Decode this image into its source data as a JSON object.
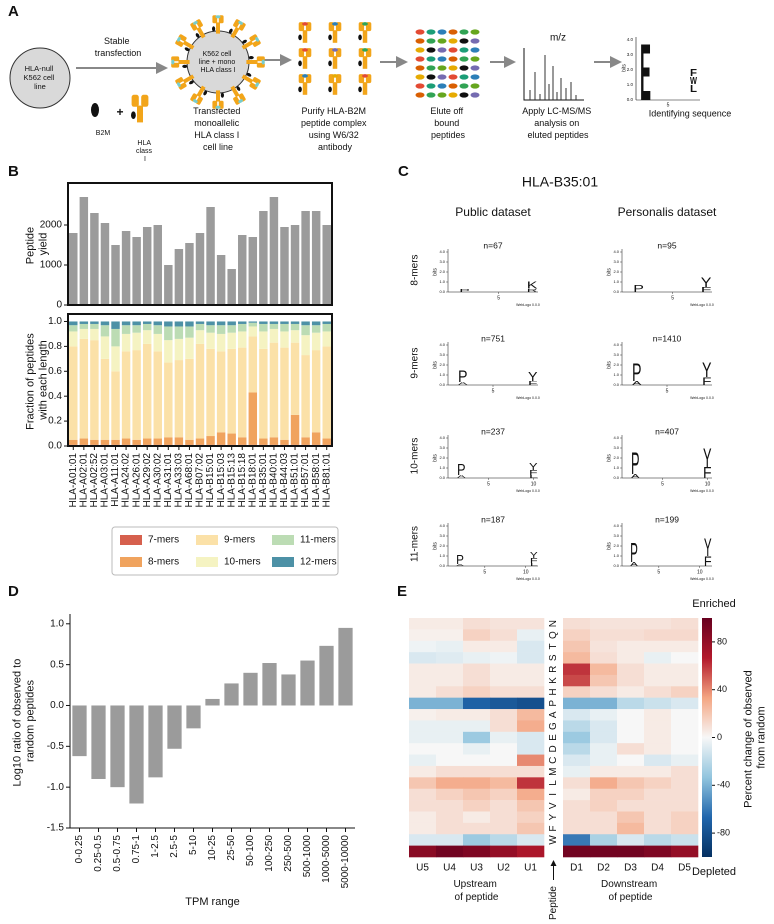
{
  "panel_labels": [
    "A",
    "B",
    "C",
    "D",
    "E"
  ],
  "workflow": {
    "cell_line": "HLA-null K562 cell line",
    "transfection": "Stable transfection",
    "b2m": "B2M",
    "plus": "+",
    "hla": "HLA class I",
    "cell_inner": "K562 cell line + mono HLA class I",
    "transfected": "Transfected monoallelic HLA class I cell line",
    "purify": "Purify HLA-B2M peptide complex using W6/32 antibody",
    "elute": "Elute off bound peptides",
    "mz": "m/z",
    "ms": "Apply LC-MS/MS analysis on eluted peptides",
    "identify": "Identifying sequence",
    "logo": {
      "ylabel": "bits",
      "ticks": [
        "4.0",
        "3.0",
        "2.0",
        "1.0",
        "0.0"
      ],
      "xtick": "5",
      "letters": [
        "E",
        "F",
        "W",
        "L"
      ]
    }
  },
  "chart_data": [
    {
      "type": "bar",
      "ylabel": "Peptide yield",
      "values": [
        1800,
        2700,
        2300,
        2050,
        1500,
        1850,
        1700,
        1950,
        2000,
        1000,
        1400,
        1550,
        1800,
        2450,
        1250,
        900,
        1750,
        1700,
        2350,
        2700,
        1950,
        2000,
        2350,
        2350,
        2000
      ],
      "color": "#9b9b9b",
      "ylim": [
        0,
        3050
      ],
      "yticks": [
        0,
        1000,
        2000
      ]
    },
    {
      "type": "stacked_bar",
      "ylabel": "Fraction of peptides with each length",
      "categories": [
        "HLA-A01:01",
        "HLA-A02:01",
        "HLA-A02:52",
        "HLA-A03:01",
        "HLA-A11:01",
        "HLA-A24:02",
        "HLA-A26:01",
        "HLA-A29:02",
        "HLA-A30:02",
        "HLA-A31:01",
        "HLA-A33:03",
        "HLA-A68:01",
        "HLA-B07:02",
        "HLA-B15:01",
        "HLA-B15:03",
        "HLA-B15:13",
        "HLA-B15:18",
        "HLA-B18:01",
        "HLA-B35:01",
        "HLA-B40:01",
        "HLA-B44:03",
        "HLA-B51:01",
        "HLA-B57:01",
        "HLA-B58:01",
        "HLA-B81:01"
      ],
      "ylim": [
        0,
        1.06
      ],
      "yticks": [
        {
          "value": 0,
          "label": "0.0"
        },
        0.2,
        0.4,
        0.6,
        0.8,
        {
          "value": 1,
          "label": "1.0"
        }
      ],
      "legend": "bottom",
      "series": [
        {
          "name": "7-mers",
          "color": "#d6604d",
          "values": [
            0.01,
            0.01,
            0.01,
            0.01,
            0.01,
            0.01,
            0.01,
            0.01,
            0.01,
            0.01,
            0.01,
            0.01,
            0.01,
            0.01,
            0.01,
            0.01,
            0.01,
            0.01,
            0.01,
            0.01,
            0.01,
            0.01,
            0.01,
            0.01,
            0.01
          ]
        },
        {
          "name": "8-mers",
          "color": "#f0a35e",
          "values": [
            0.04,
            0.05,
            0.04,
            0.04,
            0.04,
            0.05,
            0.04,
            0.05,
            0.05,
            0.06,
            0.06,
            0.04,
            0.05,
            0.07,
            0.1,
            0.09,
            0.06,
            0.42,
            0.05,
            0.06,
            0.04,
            0.24,
            0.06,
            0.1,
            0.05
          ]
        },
        {
          "name": "9-mers",
          "color": "#fbe1a8",
          "values": [
            0.75,
            0.8,
            0.8,
            0.65,
            0.55,
            0.7,
            0.72,
            0.76,
            0.7,
            0.6,
            0.62,
            0.65,
            0.76,
            0.7,
            0.65,
            0.68,
            0.72,
            0.45,
            0.72,
            0.76,
            0.74,
            0.58,
            0.66,
            0.66,
            0.74
          ]
        },
        {
          "name": "10-mers",
          "color": "#f5f3c2",
          "values": [
            0.12,
            0.08,
            0.09,
            0.18,
            0.2,
            0.14,
            0.14,
            0.11,
            0.14,
            0.18,
            0.17,
            0.17,
            0.11,
            0.13,
            0.14,
            0.13,
            0.13,
            0.08,
            0.14,
            0.11,
            0.13,
            0.1,
            0.16,
            0.14,
            0.12
          ]
        },
        {
          "name": "11-mers",
          "color": "#bcdcb4",
          "values": [
            0.05,
            0.04,
            0.04,
            0.09,
            0.14,
            0.07,
            0.06,
            0.05,
            0.07,
            0.11,
            0.1,
            0.09,
            0.05,
            0.06,
            0.07,
            0.06,
            0.06,
            0.03,
            0.06,
            0.04,
            0.06,
            0.05,
            0.08,
            0.06,
            0.06
          ]
        },
        {
          "name": "12-mers",
          "color": "#4d91a6",
          "values": [
            0.03,
            0.02,
            0.02,
            0.03,
            0.06,
            0.03,
            0.03,
            0.02,
            0.03,
            0.04,
            0.04,
            0.04,
            0.02,
            0.03,
            0.03,
            0.03,
            0.02,
            0.01,
            0.02,
            0.02,
            0.02,
            0.02,
            0.03,
            0.03,
            0.02
          ]
        }
      ]
    },
    {
      "type": "logo",
      "title": "HLA-B35:01",
      "columns": [
        "Public dataset",
        "Personalis dataset"
      ],
      "rows": [
        "8-mers",
        "9-mers",
        "10-mers",
        "11-mers"
      ],
      "ylabel": "bits",
      "footer": "WebLogo 0.0.0",
      "ylim": [
        0,
        4.3
      ],
      "yticks": [
        {
          "value": 0,
          "label": "0.0"
        },
        {
          "value": 1,
          "label": "1.0"
        },
        {
          "value": 2,
          "label": "2.0"
        },
        {
          "value": 3,
          "label": "3.0"
        },
        {
          "value": 4,
          "label": "4.0"
        }
      ],
      "xticks": [
        5,
        10
      ],
      "logos": [
        {
          "n_label": "n=67",
          "length": 8,
          "letters": [
            {
              "position": 2,
              "letter": "P",
              "bits": 0.3,
              "color": "#000000"
            },
            {
              "position": 8,
              "letter": "R",
              "bits": 0.35,
              "color": "#1f2fd0"
            },
            {
              "position": 8,
              "letter": "K",
              "bits": 0.7,
              "color": "#1f2fd0"
            }
          ]
        },
        {
          "n_label": "n=95",
          "length": 8,
          "letters": [
            {
              "position": 2,
              "letter": "P",
              "bits": 0.7,
              "color": "#000000"
            },
            {
              "position": 8,
              "letter": "F",
              "bits": 0.5,
              "color": "#000000"
            },
            {
              "position": 8,
              "letter": "Y",
              "bits": 1.0,
              "color": "#22bb22"
            }
          ]
        },
        {
          "n_label": "n=751",
          "length": 9,
          "letters": [
            {
              "position": 2,
              "letter": "A",
              "bits": 0.3,
              "color": "#000000"
            },
            {
              "position": 2,
              "letter": "P",
              "bits": 1.2,
              "color": "#000000"
            },
            {
              "position": 9,
              "letter": "F",
              "bits": 0.4,
              "color": "#000000"
            },
            {
              "position": 9,
              "letter": "Y",
              "bits": 0.9,
              "color": "#22bb22"
            }
          ]
        },
        {
          "n_label": "n=1410",
          "length": 9,
          "letters": [
            {
              "position": 2,
              "letter": "A",
              "bits": 0.4,
              "color": "#000000"
            },
            {
              "position": 2,
              "letter": "P",
              "bits": 1.8,
              "color": "#000000"
            },
            {
              "position": 9,
              "letter": "F",
              "bits": 0.8,
              "color": "#000000"
            },
            {
              "position": 9,
              "letter": "Y",
              "bits": 1.5,
              "color": "#22bb22"
            }
          ]
        },
        {
          "n_label": "n=237",
          "length": 10,
          "letters": [
            {
              "position": 2,
              "letter": "A",
              "bits": 0.3,
              "color": "#000000"
            },
            {
              "position": 2,
              "letter": "P",
              "bits": 1.1,
              "color": "#000000"
            },
            {
              "position": 10,
              "letter": "L",
              "bits": 0.3,
              "color": "#000000"
            },
            {
              "position": 10,
              "letter": "F",
              "bits": 0.5,
              "color": "#000000"
            },
            {
              "position": 10,
              "letter": "Y",
              "bits": 0.7,
              "color": "#22bb22"
            }
          ]
        },
        {
          "n_label": "n=407",
          "length": 10,
          "letters": [
            {
              "position": 2,
              "letter": "A",
              "bits": 0.4,
              "color": "#000000"
            },
            {
              "position": 2,
              "letter": "P",
              "bits": 2.3,
              "color": "#000000"
            },
            {
              "position": 10,
              "letter": "F",
              "bits": 1.1,
              "color": "#000000"
            },
            {
              "position": 10,
              "letter": "Y",
              "bits": 1.9,
              "color": "#22bb22"
            }
          ]
        },
        {
          "n_label": "n=187",
          "length": 11,
          "letters": [
            {
              "position": 2,
              "letter": "A",
              "bits": 0.2,
              "color": "#000000"
            },
            {
              "position": 2,
              "letter": "P",
              "bits": 0.9,
              "color": "#000000"
            },
            {
              "position": 11,
              "letter": "L",
              "bits": 0.3,
              "color": "#000000"
            },
            {
              "position": 11,
              "letter": "F",
              "bits": 0.5,
              "color": "#000000"
            },
            {
              "position": 11,
              "letter": "Y",
              "bits": 0.6,
              "color": "#22bb22"
            }
          ]
        },
        {
          "n_label": "n=199",
          "length": 11,
          "letters": [
            {
              "position": 2,
              "letter": "A",
              "bits": 0.4,
              "color": "#000000"
            },
            {
              "position": 2,
              "letter": "P",
              "bits": 2.0,
              "color": "#000000"
            },
            {
              "position": 11,
              "letter": "F",
              "bits": 1.0,
              "color": "#000000"
            },
            {
              "position": 11,
              "letter": "Y",
              "bits": 1.8,
              "color": "#22bb22"
            }
          ]
        }
      ]
    },
    {
      "type": "bar",
      "ylabel": "Log10 ratio of observed to random peptides",
      "xlabel": "TPM range",
      "categories": [
        "0-0.25",
        "0.25-0.5",
        "0.5-0.75",
        "0.75-1",
        "1-2.5",
        "2.5-5",
        "5-10",
        "10-25",
        "25-50",
        "50-100",
        "100-250",
        "250-500",
        "500-1000",
        "1000-5000",
        "5000-10000"
      ],
      "values": [
        -0.62,
        -0.9,
        -1.0,
        -1.2,
        -0.88,
        -0.53,
        -0.28,
        0.08,
        0.27,
        0.4,
        0.52,
        0.38,
        0.55,
        0.73,
        0.95
      ],
      "color": "#9b9b9b",
      "ylim": [
        -1.5,
        1.12
      ],
      "yticks": [
        -1.5,
        {
          "value": -1,
          "label": "-1.0"
        },
        -0.5,
        {
          "value": 0,
          "label": "0.0"
        },
        0.5,
        {
          "value": 1,
          "label": "1.0"
        }
      ]
    },
    {
      "type": "heatmap",
      "columns": [
        "U5",
        "U4",
        "U3",
        "U2",
        "U1",
        "D1",
        "D2",
        "D3",
        "D4",
        "D5"
      ],
      "rows": [
        "N",
        "Q",
        "T",
        "S",
        "R",
        "K",
        "H",
        "P",
        "A",
        "G",
        "E",
        "D",
        "C",
        "M",
        "L",
        "I",
        "V",
        "Y",
        "F",
        "W",
        null
      ],
      "group_labels": [
        "Upstream of peptide",
        "Downstream of peptide"
      ],
      "peptide_label": "Peptide",
      "colorbar_label": "Percent change of observed from random",
      "high_label": "Enriched",
      "low_label": "Depleted",
      "zlim": [
        -100,
        100
      ],
      "zticks": [
        80,
        40,
        0,
        -40,
        -80
      ],
      "colors": [
        "#053061",
        "#2166ac",
        "#92c5de",
        "#f7f7f7",
        "#f4a582",
        "#b2182b",
        "#67001f"
      ],
      "z": [
        [
          5,
          5,
          10,
          8,
          8,
          10,
          8,
          8,
          8,
          10
        ],
        [
          3,
          3,
          15,
          10,
          -5,
          15,
          10,
          10,
          12,
          12
        ],
        [
          -3,
          -5,
          5,
          5,
          -10,
          20,
          8,
          5,
          5,
          5
        ],
        [
          -10,
          -8,
          -5,
          -3,
          -10,
          25,
          10,
          5,
          -5,
          0
        ],
        [
          5,
          5,
          10,
          5,
          5,
          60,
          25,
          10,
          5,
          5
        ],
        [
          5,
          5,
          10,
          5,
          5,
          55,
          20,
          10,
          5,
          5
        ],
        [
          5,
          10,
          15,
          10,
          10,
          15,
          10,
          5,
          10,
          15
        ],
        [
          -40,
          -40,
          -70,
          -75,
          -80,
          -40,
          -40,
          -20,
          -15,
          -10
        ],
        [
          3,
          5,
          5,
          10,
          25,
          -10,
          -5,
          0,
          5,
          0
        ],
        [
          -5,
          -5,
          -5,
          10,
          30,
          -20,
          -10,
          0,
          5,
          0
        ],
        [
          -5,
          -5,
          -30,
          -5,
          -10,
          -30,
          -10,
          0,
          5,
          0
        ],
        [
          0,
          0,
          -5,
          0,
          -10,
          -20,
          -5,
          10,
          5,
          0
        ],
        [
          -5,
          0,
          0,
          0,
          40,
          -10,
          -5,
          0,
          -10,
          -5
        ],
        [
          5,
          10,
          10,
          10,
          10,
          -5,
          5,
          5,
          5,
          10
        ],
        [
          20,
          30,
          30,
          25,
          60,
          10,
          30,
          20,
          15,
          10
        ],
        [
          10,
          15,
          20,
          15,
          30,
          5,
          15,
          15,
          10,
          10
        ],
        [
          10,
          10,
          15,
          10,
          20,
          10,
          15,
          10,
          10,
          10
        ],
        [
          5,
          10,
          5,
          10,
          15,
          10,
          10,
          20,
          10,
          15
        ],
        [
          5,
          10,
          10,
          10,
          20,
          10,
          10,
          25,
          10,
          15
        ],
        [
          -10,
          -10,
          -30,
          -20,
          -10,
          -60,
          -25,
          -10,
          -20,
          -15
        ],
        [
          85,
          95,
          90,
          80,
          70,
          95,
          95,
          95,
          90,
          80
        ]
      ]
    }
  ]
}
